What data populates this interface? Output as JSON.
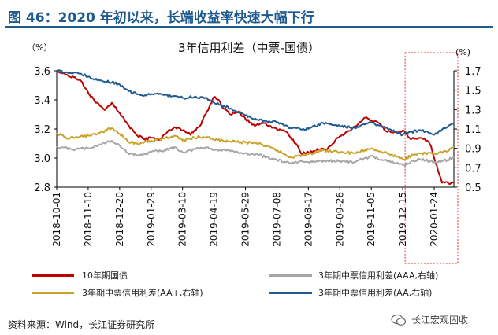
{
  "figure_title": "图 46：2020 年初以来，长端收益率快速大幅下行",
  "source": "资料来源：Wind，长江证券研究所",
  "watermark": "长江宏观固收",
  "chart_data": {
    "type": "line",
    "title": "3年信用利差（中票-国债）",
    "left_unit": "（%）",
    "right_unit": "(%)",
    "left_axis": {
      "ylim": [
        2.8,
        3.6
      ],
      "ticks": [
        "2.8",
        "3.0",
        "3.2",
        "3.4",
        "3.6"
      ]
    },
    "right_axis": {
      "ylim": [
        0.5,
        1.7
      ],
      "ticks": [
        "0.5",
        "0.7",
        "0.9",
        "1.1",
        "1.3",
        "1.5",
        "1.7"
      ]
    },
    "x_tick_labels": [
      "2018-10-01",
      "2018-11-10",
      "2018-12-20",
      "2019-01-29",
      "2019-03-10",
      "2019-04-19",
      "2019-05-29",
      "2019-07-08",
      "2019-08-17",
      "2019-09-26",
      "2019-11-05",
      "2019-12-15",
      "2020-01-24"
    ],
    "x_range": [
      "2018-10-01",
      "2020-02-18"
    ],
    "highlight_box": {
      "from": "2019-12-18",
      "to": "2020-02-18"
    },
    "series": [
      {
        "name": "10年期国债",
        "axis": "left",
        "color": "#c00000",
        "points": [
          [
            "2018-10-01",
            3.6
          ],
          [
            "2018-10-15",
            3.57
          ],
          [
            "2018-11-01",
            3.53
          ],
          [
            "2018-11-10",
            3.45
          ],
          [
            "2018-11-20",
            3.38
          ],
          [
            "2018-12-01",
            3.33
          ],
          [
            "2018-12-10",
            3.38
          ],
          [
            "2018-12-20",
            3.31
          ],
          [
            "2019-01-01",
            3.22
          ],
          [
            "2019-01-10",
            3.16
          ],
          [
            "2019-01-20",
            3.13
          ],
          [
            "2019-01-29",
            3.14
          ],
          [
            "2019-02-10",
            3.13
          ],
          [
            "2019-02-20",
            3.19
          ],
          [
            "2019-03-01",
            3.21
          ],
          [
            "2019-03-10",
            3.19
          ],
          [
            "2019-03-20",
            3.16
          ],
          [
            "2019-04-01",
            3.22
          ],
          [
            "2019-04-10",
            3.32
          ],
          [
            "2019-04-19",
            3.42
          ],
          [
            "2019-04-25",
            3.4
          ],
          [
            "2019-05-01",
            3.34
          ],
          [
            "2019-05-10",
            3.3
          ],
          [
            "2019-05-20",
            3.32
          ],
          [
            "2019-05-29",
            3.27
          ],
          [
            "2019-06-10",
            3.22
          ],
          [
            "2019-06-20",
            3.24
          ],
          [
            "2019-06-30",
            3.22
          ],
          [
            "2019-07-08",
            3.2
          ],
          [
            "2019-07-20",
            3.18
          ],
          [
            "2019-08-01",
            3.1
          ],
          [
            "2019-08-08",
            3.03
          ],
          [
            "2019-08-17",
            3.04
          ],
          [
            "2019-08-30",
            3.06
          ],
          [
            "2019-09-10",
            3.06
          ],
          [
            "2019-09-20",
            3.12
          ],
          [
            "2019-09-26",
            3.15
          ],
          [
            "2019-10-10",
            3.19
          ],
          [
            "2019-10-20",
            3.24
          ],
          [
            "2019-10-30",
            3.28
          ],
          [
            "2019-11-05",
            3.26
          ],
          [
            "2019-11-15",
            3.24
          ],
          [
            "2019-11-25",
            3.18
          ],
          [
            "2019-12-05",
            3.18
          ],
          [
            "2019-12-15",
            3.19
          ],
          [
            "2019-12-25",
            3.13
          ],
          [
            "2020-01-05",
            3.14
          ],
          [
            "2020-01-15",
            3.12
          ],
          [
            "2020-01-20",
            3.08
          ],
          [
            "2020-01-24",
            3.0
          ],
          [
            "2020-02-03",
            2.83
          ],
          [
            "2020-02-18",
            2.83
          ]
        ]
      },
      {
        "name": "3年期中票信用利差(AAA,右轴)",
        "axis": "right",
        "color": "#a6a6a6",
        "points": [
          [
            "2018-10-01",
            0.92
          ],
          [
            "2018-10-20",
            0.89
          ],
          [
            "2018-11-10",
            0.9
          ],
          [
            "2018-11-25",
            0.94
          ],
          [
            "2018-12-10",
            0.98
          ],
          [
            "2018-12-20",
            0.93
          ],
          [
            "2019-01-01",
            0.84
          ],
          [
            "2019-01-15",
            0.83
          ],
          [
            "2019-01-29",
            0.86
          ],
          [
            "2019-02-15",
            0.88
          ],
          [
            "2019-03-01",
            0.91
          ],
          [
            "2019-03-10",
            0.86
          ],
          [
            "2019-03-25",
            0.89
          ],
          [
            "2019-04-10",
            0.91
          ],
          [
            "2019-04-19",
            0.89
          ],
          [
            "2019-05-10",
            0.87
          ],
          [
            "2019-05-29",
            0.85
          ],
          [
            "2019-06-15",
            0.83
          ],
          [
            "2019-07-08",
            0.78
          ],
          [
            "2019-07-25",
            0.75
          ],
          [
            "2019-08-17",
            0.76
          ],
          [
            "2019-09-05",
            0.77
          ],
          [
            "2019-09-26",
            0.77
          ],
          [
            "2019-10-15",
            0.76
          ],
          [
            "2019-11-05",
            0.82
          ],
          [
            "2019-11-25",
            0.77
          ],
          [
            "2019-12-15",
            0.73
          ],
          [
            "2020-01-05",
            0.79
          ],
          [
            "2020-01-24",
            0.76
          ],
          [
            "2020-02-10",
            0.78
          ],
          [
            "2020-02-18",
            0.81
          ]
        ]
      },
      {
        "name": "3年期中票信用利差(AA+,右轴)",
        "axis": "right",
        "color": "#c9a227",
        "points": [
          [
            "2018-10-01",
            1.06
          ],
          [
            "2018-10-15",
            1.0
          ],
          [
            "2018-11-10",
            1.03
          ],
          [
            "2018-11-25",
            1.06
          ],
          [
            "2018-12-10",
            1.11
          ],
          [
            "2018-12-20",
            1.05
          ],
          [
            "2019-01-01",
            0.96
          ],
          [
            "2019-01-15",
            0.95
          ],
          [
            "2019-01-29",
            0.98
          ],
          [
            "2019-02-15",
            1.0
          ],
          [
            "2019-03-01",
            1.03
          ],
          [
            "2019-03-10",
            0.98
          ],
          [
            "2019-03-25",
            1.01
          ],
          [
            "2019-04-10",
            1.02
          ],
          [
            "2019-04-19",
            0.99
          ],
          [
            "2019-05-10",
            0.97
          ],
          [
            "2019-05-29",
            0.96
          ],
          [
            "2019-06-15",
            0.95
          ],
          [
            "2019-07-08",
            0.88
          ],
          [
            "2019-07-25",
            0.81
          ],
          [
            "2019-08-17",
            0.84
          ],
          [
            "2019-09-05",
            0.88
          ],
          [
            "2019-09-26",
            0.86
          ],
          [
            "2019-10-15",
            0.85
          ],
          [
            "2019-11-05",
            0.9
          ],
          [
            "2019-11-25",
            0.85
          ],
          [
            "2019-12-15",
            0.79
          ],
          [
            "2020-01-05",
            0.85
          ],
          [
            "2020-01-24",
            0.84
          ],
          [
            "2020-02-10",
            0.87
          ],
          [
            "2020-02-18",
            0.91
          ]
        ]
      },
      {
        "name": "3年期中票信用利差(AA,右轴)",
        "axis": "right",
        "color": "#1f5a8f",
        "points": [
          [
            "2018-10-01",
            1.7
          ],
          [
            "2018-10-15",
            1.68
          ],
          [
            "2018-11-01",
            1.67
          ],
          [
            "2018-11-10",
            1.64
          ],
          [
            "2018-11-25",
            1.6
          ],
          [
            "2018-12-10",
            1.58
          ],
          [
            "2018-12-20",
            1.56
          ],
          [
            "2019-01-01",
            1.49
          ],
          [
            "2019-01-15",
            1.45
          ],
          [
            "2019-01-29",
            1.46
          ],
          [
            "2019-02-15",
            1.45
          ],
          [
            "2019-03-01",
            1.44
          ],
          [
            "2019-03-10",
            1.42
          ],
          [
            "2019-03-25",
            1.43
          ],
          [
            "2019-04-10",
            1.42
          ],
          [
            "2019-04-19",
            1.37
          ],
          [
            "2019-05-10",
            1.31
          ],
          [
            "2019-05-29",
            1.24
          ],
          [
            "2019-06-15",
            1.19
          ],
          [
            "2019-07-08",
            1.17
          ],
          [
            "2019-07-25",
            1.11
          ],
          [
            "2019-08-17",
            1.1
          ],
          [
            "2019-09-05",
            1.16
          ],
          [
            "2019-09-26",
            1.13
          ],
          [
            "2019-10-15",
            1.11
          ],
          [
            "2019-11-05",
            1.17
          ],
          [
            "2019-11-20",
            1.12
          ],
          [
            "2019-12-05",
            1.07
          ],
          [
            "2019-12-15",
            1.04
          ],
          [
            "2020-01-05",
            1.09
          ],
          [
            "2020-01-24",
            1.04
          ],
          [
            "2020-02-05",
            1.11
          ],
          [
            "2020-02-18",
            1.15
          ]
        ]
      }
    ],
    "legend_placement": "bottom",
    "grid": false
  }
}
